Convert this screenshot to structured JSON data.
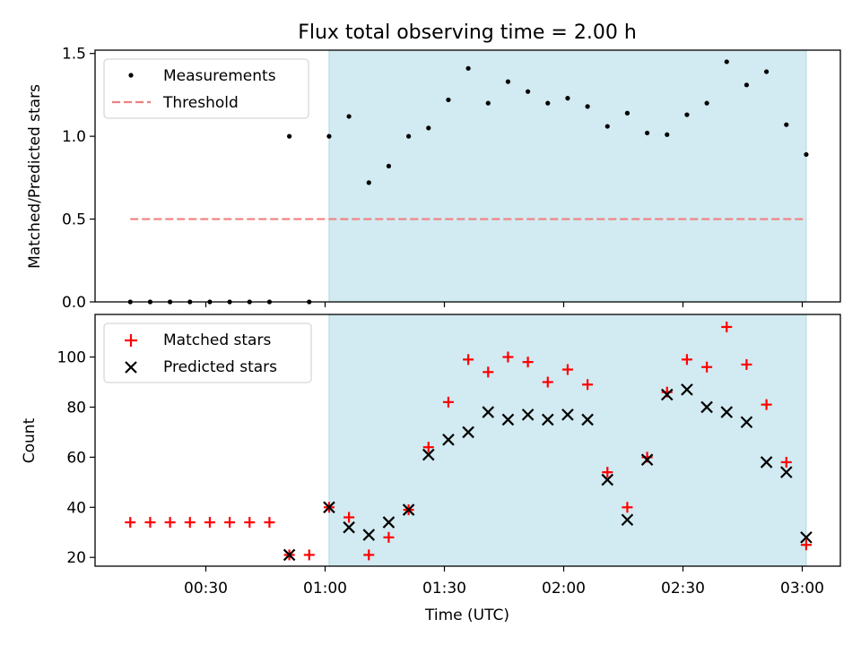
{
  "title": "Flux total observing time = 2.00 h",
  "colors": {
    "measurement": "#000000",
    "threshold": "#f08080",
    "shade": "#add8e6",
    "matched": "#ff0000",
    "predicted": "#000000"
  },
  "chart_data": [
    {
      "type": "scatter",
      "ylabel": "Matched/Predicted stars",
      "ylim": [
        0,
        1.52
      ],
      "yticks": [
        "0.0",
        "0.5",
        "1.0",
        "1.5"
      ],
      "shaded_span": [
        "01:01",
        "03:01"
      ],
      "legend_position": "top-left",
      "threshold": {
        "name": "Threshold",
        "value": 0.5,
        "x_range": [
          "00:11",
          "03:01"
        ]
      },
      "series": [
        {
          "name": "Measurements",
          "marker": "dot",
          "x": [
            "00:11",
            "00:16",
            "00:21",
            "00:26",
            "00:31",
            "00:36",
            "00:41",
            "00:46",
            "00:51",
            "00:56",
            "01:01",
            "01:06",
            "01:11",
            "01:16",
            "01:21",
            "01:26",
            "01:31",
            "01:36",
            "01:41",
            "01:46",
            "01:51",
            "01:56",
            "02:01",
            "02:06",
            "02:11",
            "02:16",
            "02:21",
            "02:26",
            "02:31",
            "02:36",
            "02:41",
            "02:46",
            "02:51",
            "02:56",
            "03:01"
          ],
          "values": [
            0,
            0,
            0,
            0,
            0,
            0,
            0,
            0,
            1.0,
            0,
            1.0,
            1.12,
            0.72,
            0.82,
            1.0,
            1.05,
            1.22,
            1.41,
            1.2,
            1.33,
            1.27,
            1.2,
            1.23,
            1.18,
            1.06,
            1.14,
            1.02,
            1.01,
            1.13,
            1.2,
            1.45,
            1.31,
            1.39,
            1.07,
            0.89
          ]
        }
      ]
    },
    {
      "type": "scatter",
      "ylabel": "Count",
      "xlabel": "Time (UTC)",
      "ylim": [
        16.5,
        117
      ],
      "yticks": [
        "20",
        "40",
        "60",
        "80",
        "100"
      ],
      "xticks": [
        "00:30",
        "01:00",
        "01:30",
        "02:00",
        "02:30",
        "03:00"
      ],
      "shaded_span": [
        "01:01",
        "03:01"
      ],
      "legend_position": "top-left",
      "series": [
        {
          "name": "Matched stars",
          "marker": "plus",
          "x": [
            "00:11",
            "00:16",
            "00:21",
            "00:26",
            "00:31",
            "00:36",
            "00:41",
            "00:46",
            "00:51",
            "00:56",
            "01:01",
            "01:06",
            "01:11",
            "01:16",
            "01:21",
            "01:26",
            "01:31",
            "01:36",
            "01:41",
            "01:46",
            "01:51",
            "01:56",
            "02:01",
            "02:06",
            "02:11",
            "02:16",
            "02:21",
            "02:26",
            "02:31",
            "02:36",
            "02:41",
            "02:46",
            "02:51",
            "02:56",
            "03:01"
          ],
          "values": [
            34,
            34,
            34,
            34,
            34,
            34,
            34,
            34,
            21,
            21,
            40,
            36,
            21,
            28,
            39,
            64,
            82,
            99,
            94,
            100,
            98,
            90,
            95,
            89,
            54,
            40,
            60,
            86,
            99,
            96,
            112,
            97,
            81,
            58,
            25
          ]
        },
        {
          "name": "Predicted stars",
          "marker": "x",
          "x": [
            "00:51",
            "01:01",
            "01:06",
            "01:11",
            "01:16",
            "01:21",
            "01:26",
            "01:31",
            "01:36",
            "01:41",
            "01:46",
            "01:51",
            "01:56",
            "02:01",
            "02:06",
            "02:11",
            "02:16",
            "02:21",
            "02:26",
            "02:31",
            "02:36",
            "02:41",
            "02:46",
            "02:51",
            "02:56",
            "03:01"
          ],
          "values": [
            21,
            40,
            32,
            29,
            34,
            39,
            61,
            67,
            70,
            78,
            75,
            77,
            75,
            77,
            75,
            51,
            35,
            59,
            85,
            87,
            80,
            78,
            74,
            58,
            54,
            28
          ]
        }
      ]
    }
  ]
}
